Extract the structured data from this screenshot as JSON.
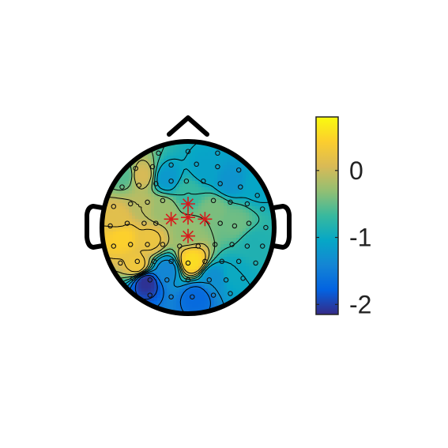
{
  "chart_data": {
    "type": "heatmap",
    "title": "",
    "colorbar": {
      "colormap": "parula",
      "range": [
        -2.15,
        0.8
      ],
      "ticks": [
        {
          "value": 0,
          "label": "0"
        },
        {
          "value": -1,
          "label": "-1"
        },
        {
          "value": -2,
          "label": "-2"
        }
      ]
    },
    "contour_levels": [
      -1.9,
      -1.6,
      -1.3,
      -1.0,
      -0.7,
      -0.4,
      -0.1,
      0.2
    ],
    "field_regions": [
      {
        "u": -0.75,
        "v": 0.62,
        "value": -0.55
      },
      {
        "u": -0.25,
        "v": 0.58,
        "value": -1.2
      },
      {
        "u": 0.2,
        "v": 0.68,
        "value": -1.1
      },
      {
        "u": 0.5,
        "v": 0.55,
        "value": -1.25
      },
      {
        "u": 0.82,
        "v": 0.5,
        "value": -1.05
      },
      {
        "u": -0.82,
        "v": 0.1,
        "value": 0.15
      },
      {
        "u": -0.78,
        "v": -0.12,
        "value": 0.45
      },
      {
        "u": -0.45,
        "v": -0.15,
        "value": 0.25
      },
      {
        "u": -0.3,
        "v": 0.22,
        "value": -0.25
      },
      {
        "u": 0.0,
        "v": 0.42,
        "value": -0.7
      },
      {
        "u": 0.3,
        "v": 0.2,
        "value": -0.4
      },
      {
        "u": 0.55,
        "v": 0.05,
        "value": -0.45
      },
      {
        "u": 0.78,
        "v": -0.2,
        "value": -0.85
      },
      {
        "u": 0.0,
        "v": -0.05,
        "value": -0.3
      },
      {
        "u": 0.05,
        "v": -0.4,
        "value": 0.55
      },
      {
        "u": -0.25,
        "v": -0.5,
        "value": -1.4
      },
      {
        "u": -0.5,
        "v": -0.65,
        "value": -2.1
      },
      {
        "u": 0.3,
        "v": -0.6,
        "value": -1.3
      },
      {
        "u": 0.55,
        "v": -0.55,
        "value": -1.0
      },
      {
        "u": 0.1,
        "v": -0.82,
        "value": -1.7
      },
      {
        "u": -0.55,
        "v": 0.62,
        "value": 0.05
      },
      {
        "u": -0.55,
        "v": 0.25,
        "value": -0.1
      },
      {
        "u": -0.6,
        "v": -0.45,
        "value": 0.3
      }
    ],
    "electrodes": [
      {
        "u": -0.35,
        "v": 0.88
      },
      {
        "u": 0.0,
        "v": 0.9
      },
      {
        "u": 0.35,
        "v": 0.88
      },
      {
        "u": -0.62,
        "v": 0.7
      },
      {
        "u": -0.42,
        "v": 0.72
      },
      {
        "u": -0.2,
        "v": 0.74
      },
      {
        "u": 0.1,
        "v": 0.75
      },
      {
        "u": 0.35,
        "v": 0.72
      },
      {
        "u": 0.6,
        "v": 0.68
      },
      {
        "u": -0.78,
        "v": 0.48
      },
      {
        "u": -0.58,
        "v": 0.5
      },
      {
        "u": -0.38,
        "v": 0.52
      },
      {
        "u": -0.2,
        "v": 0.55
      },
      {
        "u": -0.02,
        "v": 0.55
      },
      {
        "u": 0.18,
        "v": 0.55
      },
      {
        "u": 0.38,
        "v": 0.52
      },
      {
        "u": 0.62,
        "v": 0.48
      },
      {
        "u": 0.82,
        "v": 0.38
      },
      {
        "u": -0.88,
        "v": 0.25
      },
      {
        "u": -0.68,
        "v": 0.28
      },
      {
        "u": -0.48,
        "v": 0.3
      },
      {
        "u": -0.3,
        "v": 0.32
      },
      {
        "u": 0.3,
        "v": 0.32
      },
      {
        "u": 0.5,
        "v": 0.3
      },
      {
        "u": 0.7,
        "v": 0.28
      },
      {
        "u": 0.88,
        "v": 0.22
      },
      {
        "u": -0.92,
        "v": 0.02
      },
      {
        "u": -0.72,
        "v": 0.05
      },
      {
        "u": -0.52,
        "v": 0.05
      },
      {
        "u": -0.38,
        "v": 0.05
      },
      {
        "u": 0.38,
        "v": 0.05
      },
      {
        "u": 0.55,
        "v": 0.02
      },
      {
        "u": 0.72,
        "v": 0.05
      },
      {
        "u": 0.92,
        "v": 0.0
      },
      {
        "u": -0.88,
        "v": -0.22
      },
      {
        "u": -0.68,
        "v": -0.2
      },
      {
        "u": -0.48,
        "v": -0.2
      },
      {
        "u": -0.3,
        "v": -0.2
      },
      {
        "u": -0.1,
        "v": -0.22
      },
      {
        "u": 0.12,
        "v": -0.22
      },
      {
        "u": 0.32,
        "v": -0.2
      },
      {
        "u": 0.52,
        "v": -0.2
      },
      {
        "u": 0.7,
        "v": -0.22
      },
      {
        "u": 0.88,
        "v": -0.22
      },
      {
        "u": -0.8,
        "v": -0.42
      },
      {
        "u": -0.6,
        "v": -0.4
      },
      {
        "u": -0.4,
        "v": -0.4
      },
      {
        "u": -0.2,
        "v": -0.4
      },
      {
        "u": 0.0,
        "v": -0.42
      },
      {
        "u": 0.2,
        "v": -0.4
      },
      {
        "u": 0.4,
        "v": -0.4
      },
      {
        "u": 0.6,
        "v": -0.4
      },
      {
        "u": 0.8,
        "v": -0.42
      },
      {
        "u": -0.65,
        "v": -0.6
      },
      {
        "u": -0.45,
        "v": -0.62
      },
      {
        "u": -0.25,
        "v": -0.62
      },
      {
        "u": 0.0,
        "v": -0.62
      },
      {
        "u": 0.25,
        "v": -0.62
      },
      {
        "u": 0.45,
        "v": -0.62
      },
      {
        "u": 0.65,
        "v": -0.6
      },
      {
        "u": -0.45,
        "v": -0.8
      },
      {
        "u": -0.2,
        "v": -0.82
      },
      {
        "u": 0.05,
        "v": -0.82
      },
      {
        "u": 0.3,
        "v": -0.8
      },
      {
        "u": 0.5,
        "v": -0.78
      }
    ],
    "highlighted_electrodes": [
      {
        "u": 0.0,
        "v": 0.28
      },
      {
        "u": -0.2,
        "v": 0.1
      },
      {
        "u": 0.0,
        "v": 0.12
      },
      {
        "u": 0.2,
        "v": 0.1
      },
      {
        "u": 0.0,
        "v": -0.1
      }
    ]
  }
}
